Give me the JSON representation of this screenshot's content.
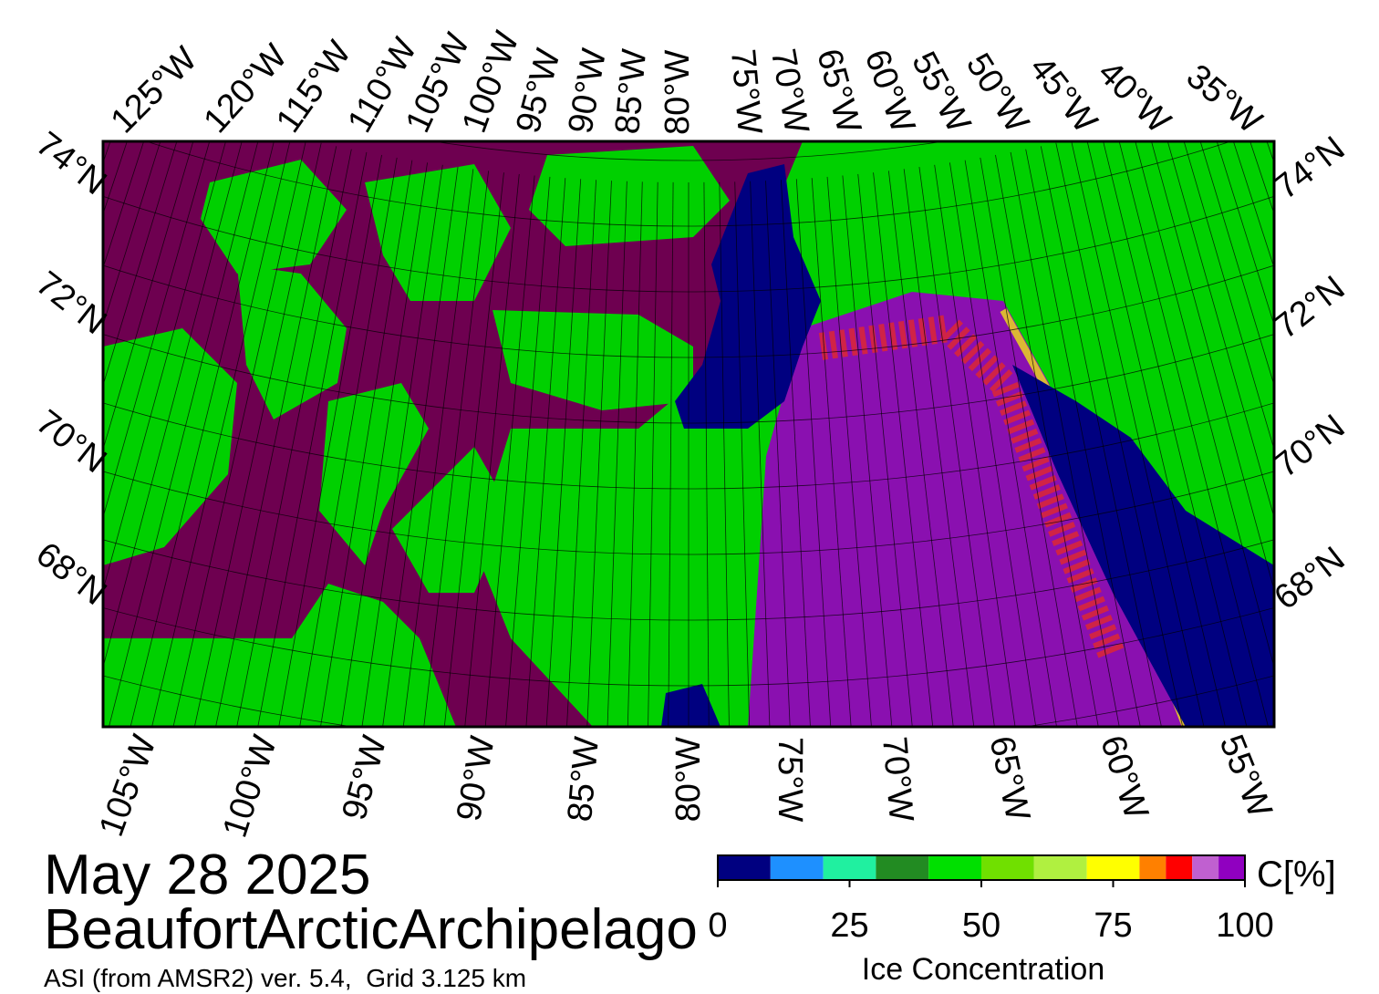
{
  "header": {
    "date": "May 28 2025",
    "region": "BeaufortArcticArchipelago",
    "source": "ASI (from AMSR2) ver. 5.4,  Grid 3.125 km"
  },
  "map": {
    "top_longitude_labels": [
      "125°W",
      "120°W",
      "115°W",
      "110°W",
      "105°W",
      "100°W",
      "95°W",
      "90°W",
      "85°W",
      "80°W",
      "75°W",
      "70°W",
      "65°W",
      "60°W",
      "55°W",
      "50°W",
      "45°W",
      "40°W",
      "35°W"
    ],
    "bottom_longitude_labels": [
      "105°W",
      "100°W",
      "95°W",
      "90°W",
      "85°W",
      "80°W",
      "75°W",
      "70°W",
      "65°W",
      "60°W",
      "55°W"
    ],
    "left_latitude_labels": [
      "74°N",
      "72°N",
      "70°N",
      "68°N"
    ],
    "right_latitude_labels": [
      "74°N",
      "72°N",
      "70°N",
      "68°N"
    ]
  },
  "colorbar": {
    "unit": "C[%]",
    "label": "Ice Concentration",
    "bounds": [
      0,
      10,
      20,
      30,
      40,
      50,
      60,
      70,
      80,
      85,
      90,
      95,
      100
    ],
    "colors": [
      "#000080",
      "#1e90ff",
      "#20f0a0",
      "#228b22",
      "#00e000",
      "#70e000",
      "#b0f040",
      "#ffff00",
      "#ff8000",
      "#ff0000",
      "#c060d0",
      "#9000c0"
    ],
    "ticks": [
      0,
      25,
      50,
      75,
      100
    ]
  }
}
